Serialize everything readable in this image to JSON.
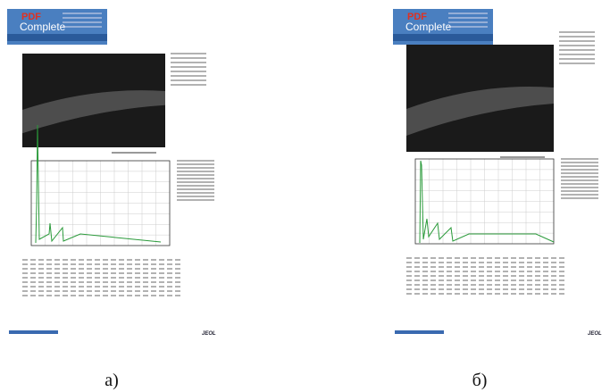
{
  "panels": [
    {
      "caption": "а)",
      "banner": {
        "brand": "PDF",
        "product": "Complete"
      },
      "footer": "JEOL"
    },
    {
      "caption": "б)",
      "banner": {
        "brand": "PDF",
        "product": "Complete"
      },
      "footer": "JEOL"
    }
  ]
}
